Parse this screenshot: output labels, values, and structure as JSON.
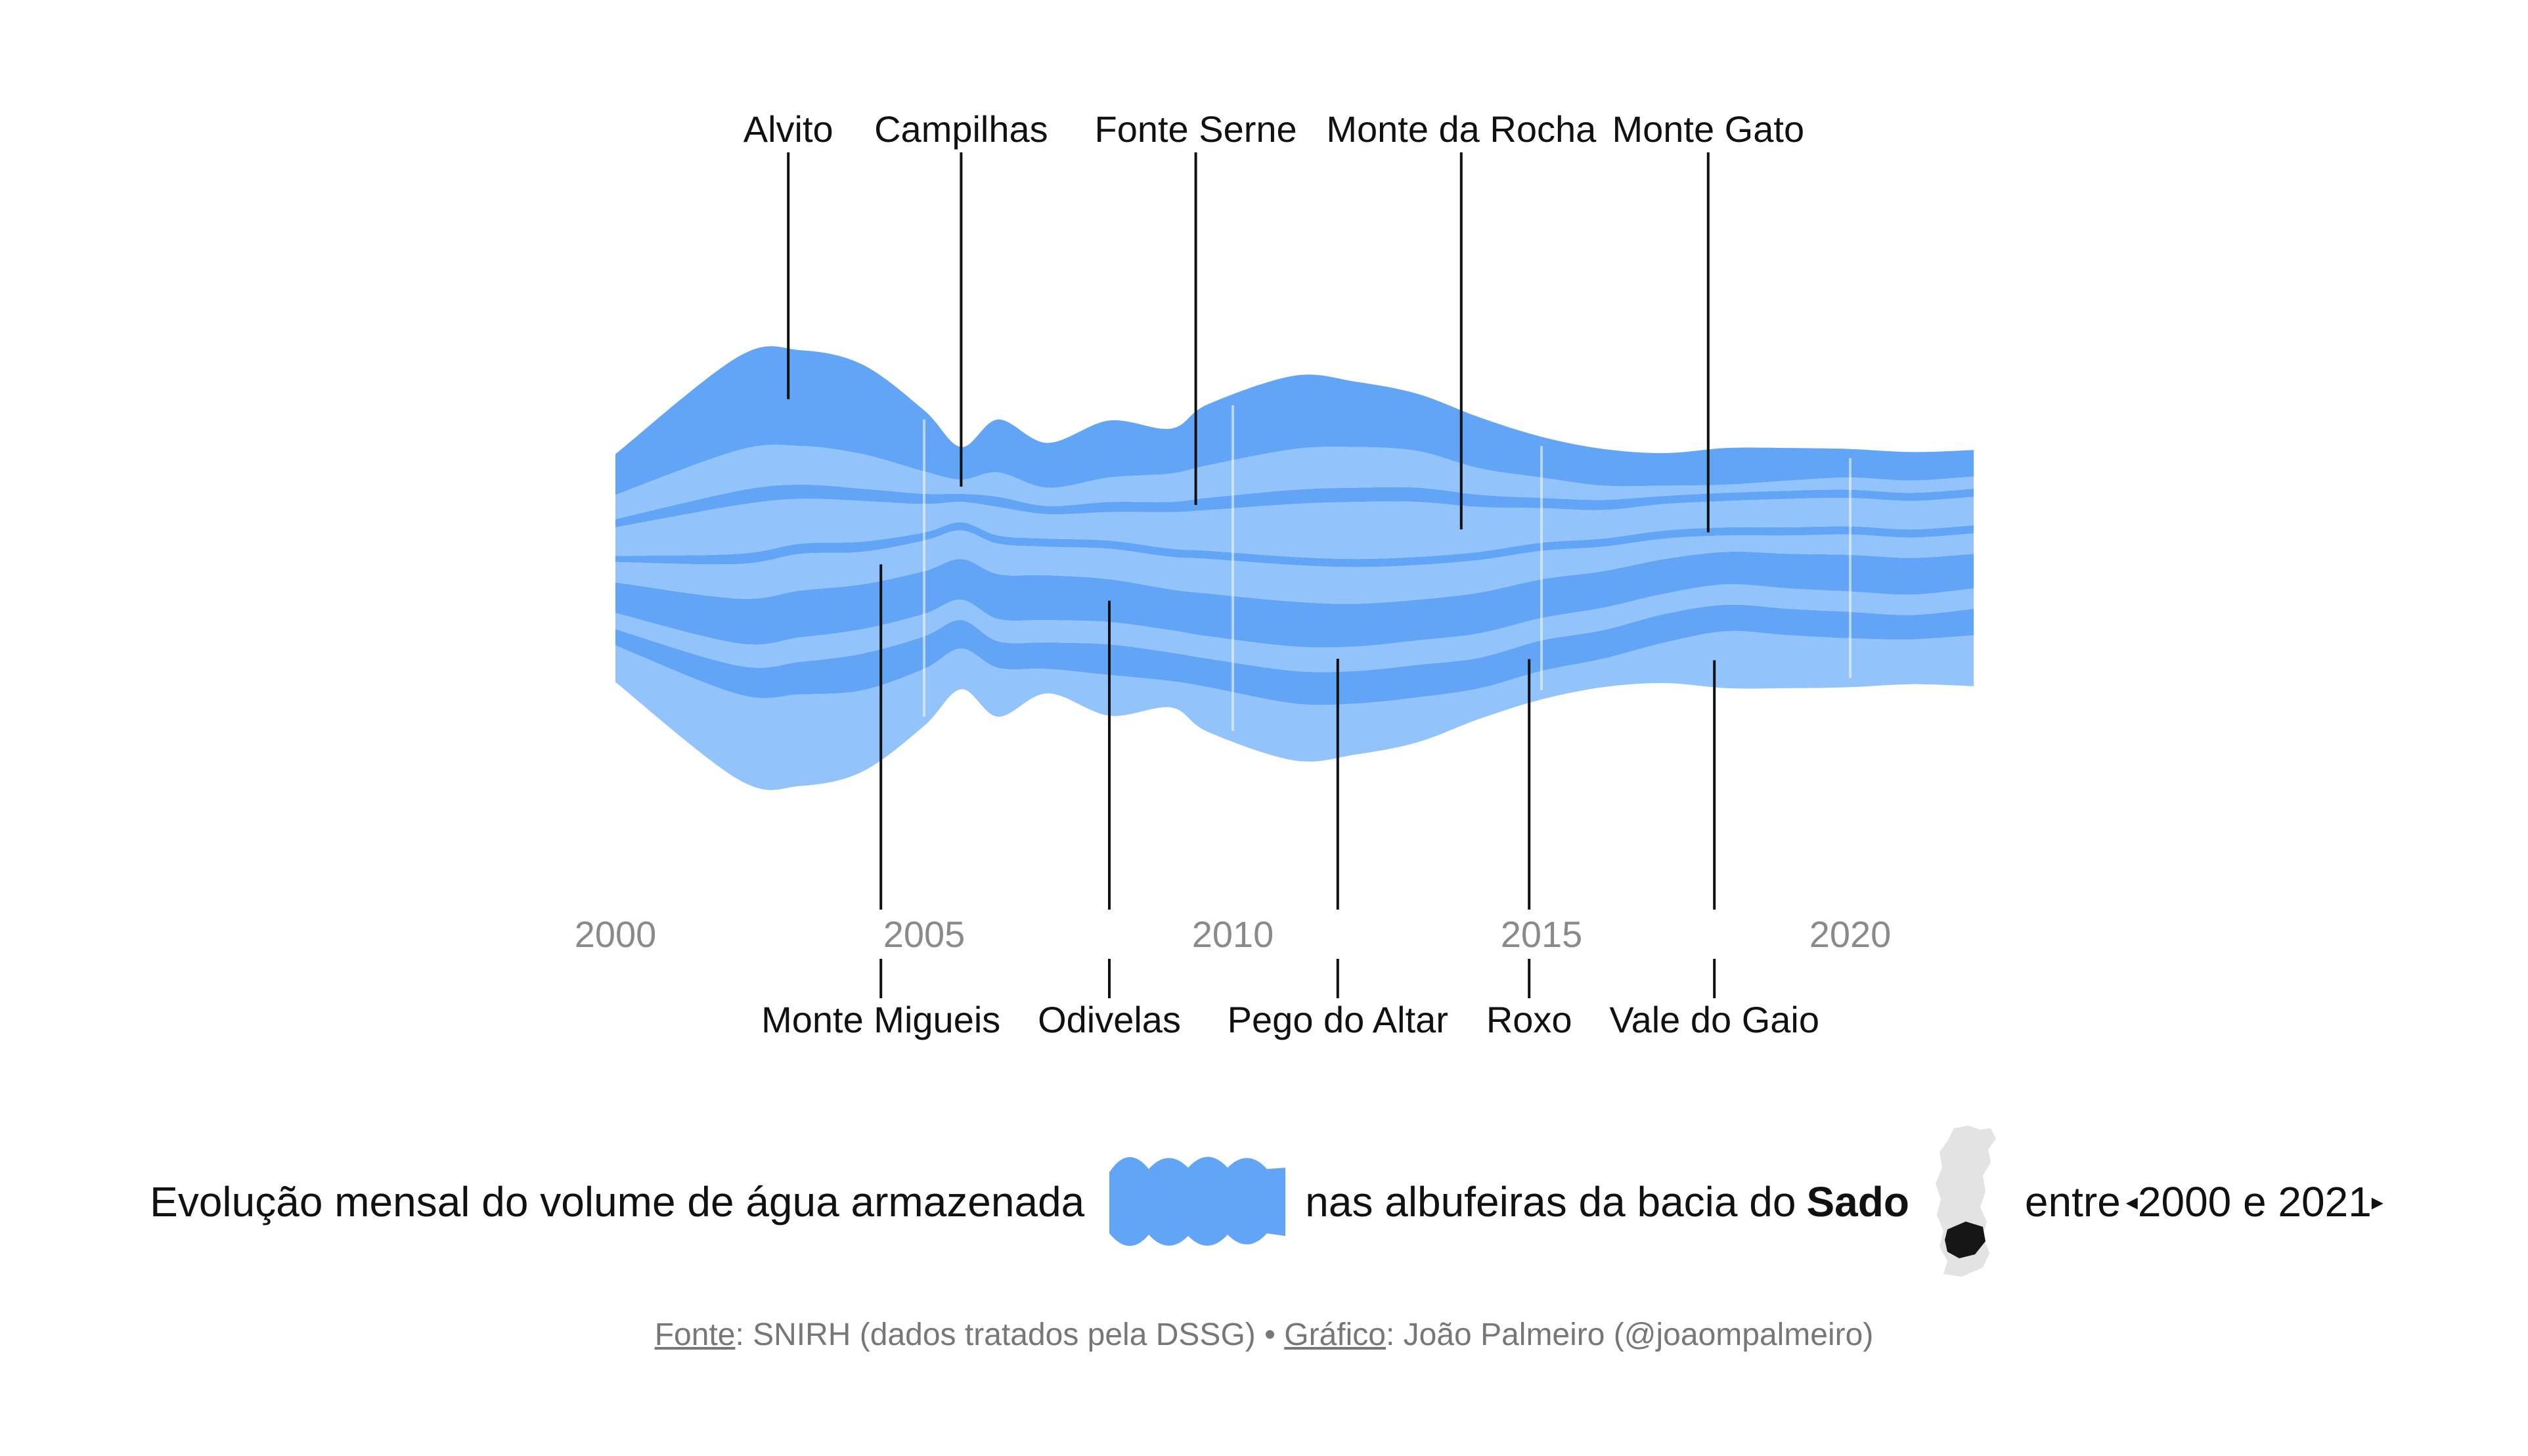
{
  "chart_data": {
    "type": "area",
    "subtype": "streamgraph",
    "x_label_years": [
      "2000",
      "2005",
      "2010",
      "2015",
      "2020"
    ],
    "x_range": [
      2000,
      2022
    ],
    "x": [
      2000,
      2002,
      2003,
      2004,
      2005,
      2005.6,
      2006.2,
      2007,
      2008,
      2009,
      2009.6,
      2011,
      2012,
      2013,
      2014,
      2015,
      2016,
      2017,
      2018,
      2019,
      2020,
      2021,
      2022
    ],
    "series": [
      {
        "name": "Vale do Gaio",
        "label_position": "bottom",
        "label_x": 2017.8,
        "values": [
          18,
          42,
          45,
          40,
          28,
          20,
          24,
          12,
          20,
          13,
          22,
          28,
          25,
          22,
          15,
          14,
          14,
          20,
          28,
          26,
          24,
          22,
          25
        ]
      },
      {
        "name": "Roxo",
        "label_position": "bottom",
        "label_x": 2014.8,
        "values": [
          8,
          14,
          16,
          18,
          16,
          14,
          13,
          13,
          15,
          14,
          14,
          16,
          16,
          16,
          15,
          15,
          14,
          14,
          13,
          13,
          13,
          12,
          13
        ]
      },
      {
        "name": "Pego do Altar",
        "label_position": "bottom",
        "label_x": 2011.7,
        "values": [
          8,
          11,
          12,
          12,
          11,
          10,
          11,
          11,
          11,
          11,
          11,
          12,
          12,
          12,
          12,
          11,
          11,
          10,
          10,
          10,
          10,
          10,
          10
        ]
      },
      {
        "name": "Odivelas",
        "label_position": "bottom",
        "label_x": 2008.0,
        "values": [
          15,
          22,
          23,
          22,
          21,
          20,
          22,
          22,
          21,
          20,
          21,
          22,
          21,
          20,
          20,
          19,
          18,
          17,
          16,
          17,
          18,
          18,
          17
        ]
      },
      {
        "name": "Monte Migueis",
        "label_position": "bottom",
        "label_x": 2004.3,
        "values": [
          10,
          17,
          18,
          16,
          15,
          14,
          15,
          14,
          15,
          16,
          17,
          18,
          18,
          17,
          16,
          14,
          12,
          10,
          8,
          9,
          10,
          10,
          10
        ]
      },
      {
        "name": "Monte Gato",
        "label_position": "top",
        "label_x": 2017.7,
        "values": [
          3,
          5,
          5,
          5,
          4,
          4,
          4,
          4,
          4,
          4,
          4,
          4,
          4,
          4,
          4,
          4,
          4,
          4,
          4,
          4,
          4,
          4,
          4
        ]
      },
      {
        "name": "Monte da Rocha",
        "label_position": "top",
        "label_x": 2013.7,
        "values": [
          14,
          24,
          22,
          20,
          14,
          10,
          14,
          12,
          14,
          18,
          20,
          26,
          28,
          27,
          22,
          17,
          14,
          13,
          13,
          14,
          14,
          14,
          14
        ]
      },
      {
        "name": "Fonte Serne",
        "label_position": "top",
        "label_x": 2009.4,
        "values": [
          4,
          7,
          7,
          6,
          5,
          4,
          5,
          4,
          5,
          5,
          6,
          7,
          7,
          7,
          6,
          5,
          5,
          4,
          4,
          4,
          4,
          4,
          4
        ]
      },
      {
        "name": "Campilhas",
        "label_position": "top",
        "label_x": 2005.6,
        "values": [
          12,
          20,
          19,
          17,
          11,
          7,
          12,
          9,
          12,
          14,
          16,
          20,
          20,
          18,
          13,
          10,
          7,
          5,
          4,
          5,
          6,
          6,
          6
        ]
      },
      {
        "name": "Alvito",
        "label_position": "top",
        "label_x": 2002.8,
        "values": [
          20,
          46,
          47,
          44,
          30,
          16,
          26,
          22,
          28,
          22,
          30,
          36,
          32,
          28,
          25,
          20,
          18,
          16,
          18,
          16,
          14,
          14,
          13
        ]
      }
    ],
    "colors": {
      "light": "#93c3fb",
      "dark": "#62a5f7",
      "grid": "#ffffff",
      "label": "#111111",
      "year": "#8a8a8a"
    },
    "grid_years": [
      2005,
      2010,
      2015,
      2020
    ]
  },
  "caption": {
    "text_before": "Evolução mensal do volume de água armazenada",
    "text_middle": "nas albufeiras da bacia do",
    "region": "Sado",
    "text_after_word": "entre",
    "period": "2000 e 2021"
  },
  "source": {
    "fonte_label": "Fonte",
    "fonte_text": ": SNIRH (dados tratados pela DSSG) • ",
    "grafico_label": "Gráfico",
    "grafico_text": ": João Palmeiro (@joaompalmeiro)"
  },
  "icons": {
    "blob": "water-stream-icon",
    "map": "portugal-map-icon",
    "left_arrow": "triangle-left-icon",
    "right_arrow": "triangle-right-icon"
  }
}
